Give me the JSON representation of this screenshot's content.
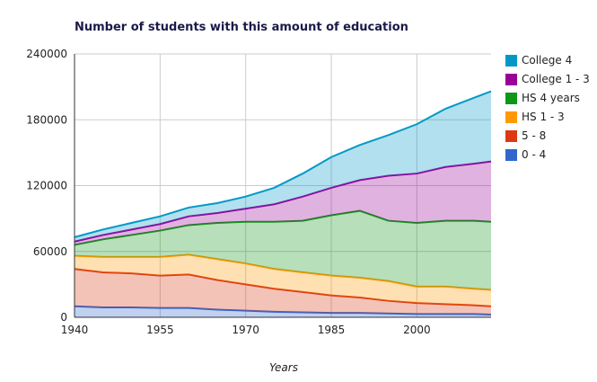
{
  "chart_data": {
    "type": "area",
    "stacked": true,
    "title": "Number of students with this amount of education",
    "xlabel": "Years",
    "ylabel": "",
    "xlim": [
      1940,
      2013
    ],
    "ylim": [
      0,
      240000
    ],
    "xticks": [
      "1940",
      "1955",
      "1970",
      "1985",
      "2000"
    ],
    "yticks": [
      "0",
      "60000",
      "120000",
      "180000",
      "240000"
    ],
    "grid": true,
    "legend": "right",
    "x": [
      1940,
      1945,
      1950,
      1955,
      1960,
      1965,
      1970,
      1975,
      1980,
      1985,
      1990,
      1995,
      2000,
      2005,
      2010,
      2013
    ],
    "series": [
      {
        "name": "0 - 4",
        "color": "#3366cc",
        "values": [
          10000,
          9000,
          9000,
          8500,
          8500,
          7000,
          6000,
          5000,
          4500,
          4000,
          4000,
          3500,
          3000,
          3000,
          3000,
          2500
        ]
      },
      {
        "name": "5 - 8",
        "color": "#dc3912",
        "values": [
          34000,
          32000,
          31000,
          29500,
          30500,
          27000,
          24000,
          21000,
          18500,
          16000,
          14000,
          11500,
          10000,
          9000,
          8000,
          7500
        ]
      },
      {
        "name": "HS 1 - 3",
        "color": "#ff9900",
        "values": [
          12000,
          14000,
          15000,
          17000,
          18000,
          19000,
          19000,
          18000,
          18000,
          18000,
          18000,
          18000,
          15000,
          16000,
          15000,
          15000
        ]
      },
      {
        "name": "HS 4 years",
        "color": "#109618",
        "values": [
          10000,
          16000,
          20000,
          24000,
          27000,
          33000,
          38000,
          43000,
          47000,
          55000,
          61000,
          55000,
          58000,
          60000,
          62000,
          62000
        ]
      },
      {
        "name": "College 1 - 3",
        "color": "#990099",
        "values": [
          3000,
          4000,
          5000,
          6000,
          8000,
          9000,
          12000,
          16000,
          22000,
          25000,
          28000,
          41000,
          45000,
          49000,
          52000,
          55000
        ]
      },
      {
        "name": "College 4",
        "color": "#0099c6",
        "values": [
          4000,
          5000,
          6000,
          7000,
          8000,
          9000,
          11000,
          15000,
          21000,
          28000,
          32000,
          37000,
          45000,
          53000,
          60000,
          64000
        ]
      }
    ]
  }
}
